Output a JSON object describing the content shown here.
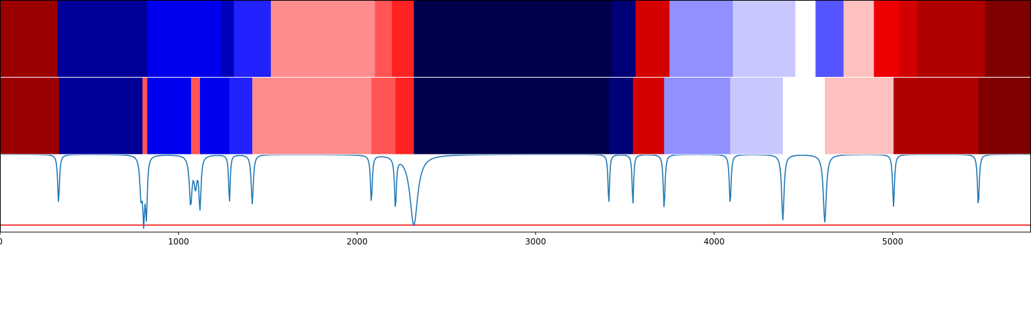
{
  "chart_data": {
    "type": "heatmap",
    "title": "",
    "xlabel": "",
    "ylabel": "",
    "xlim": [
      0,
      5775
    ],
    "x_ticks": [
      "0",
      "1000",
      "2000",
      "3000",
      "4000",
      "5000"
    ],
    "x_tick_values": [
      0,
      1000,
      2000,
      3000,
      4000,
      5000
    ],
    "grid": false,
    "colors": {
      "line": "#1f77b4",
      "threshold_line": "#ee0000",
      "axes_edge": "#000000",
      "band_divider": "#ffffff"
    },
    "bands": [
      {
        "name": "",
        "segments": [
          {
            "start": 0,
            "end": 322,
            "color": "#9a0000"
          },
          {
            "start": 322,
            "end": 825,
            "color": "#000099"
          },
          {
            "start": 825,
            "end": 1237,
            "color": "#0000ee"
          },
          {
            "start": 1237,
            "end": 1310,
            "color": "#0000bb"
          },
          {
            "start": 1310,
            "end": 1517,
            "color": "#2222ff"
          },
          {
            "start": 1517,
            "end": 2100,
            "color": "#ff8c8c"
          },
          {
            "start": 2100,
            "end": 2195,
            "color": "#ff5555"
          },
          {
            "start": 2195,
            "end": 2318,
            "color": "#ff2222"
          },
          {
            "start": 2318,
            "end": 3425,
            "color": "#00004d"
          },
          {
            "start": 3425,
            "end": 3560,
            "color": "#000077"
          },
          {
            "start": 3560,
            "end": 3750,
            "color": "#d40000"
          },
          {
            "start": 3750,
            "end": 4105,
            "color": "#9090ff"
          },
          {
            "start": 4105,
            "end": 4455,
            "color": "#c8c8ff"
          },
          {
            "start": 4455,
            "end": 4568,
            "color": "#ffffff"
          },
          {
            "start": 4568,
            "end": 4725,
            "color": "#5555ff"
          },
          {
            "start": 4725,
            "end": 4895,
            "color": "#ffc0c0"
          },
          {
            "start": 4895,
            "end": 5035,
            "color": "#ee0000"
          },
          {
            "start": 5035,
            "end": 5137,
            "color": "#d20000"
          },
          {
            "start": 5137,
            "end": 5518,
            "color": "#b10000"
          },
          {
            "start": 5518,
            "end": 5775,
            "color": "#800000"
          }
        ]
      },
      {
        "name": "",
        "segments": [
          {
            "start": 0,
            "end": 330,
            "color": "#9a0000"
          },
          {
            "start": 330,
            "end": 798,
            "color": "#000099"
          },
          {
            "start": 798,
            "end": 825,
            "color": "#ff5555"
          },
          {
            "start": 825,
            "end": 1070,
            "color": "#0000ee"
          },
          {
            "start": 1070,
            "end": 1120,
            "color": "#ff5555"
          },
          {
            "start": 1120,
            "end": 1285,
            "color": "#0000ee"
          },
          {
            "start": 1285,
            "end": 1413,
            "color": "#2222ff"
          },
          {
            "start": 1413,
            "end": 2080,
            "color": "#ff8c8c"
          },
          {
            "start": 2080,
            "end": 2215,
            "color": "#ff5555"
          },
          {
            "start": 2215,
            "end": 2318,
            "color": "#ff2222"
          },
          {
            "start": 2318,
            "end": 3410,
            "color": "#00004d"
          },
          {
            "start": 3410,
            "end": 3545,
            "color": "#000077"
          },
          {
            "start": 3545,
            "end": 3720,
            "color": "#d40000"
          },
          {
            "start": 3720,
            "end": 4090,
            "color": "#9090ff"
          },
          {
            "start": 4090,
            "end": 4385,
            "color": "#c8c8ff"
          },
          {
            "start": 4385,
            "end": 4620,
            "color": "#ffffff"
          },
          {
            "start": 4620,
            "end": 5005,
            "color": "#ffc0c0"
          },
          {
            "start": 5005,
            "end": 5480,
            "color": "#b10000"
          },
          {
            "start": 5480,
            "end": 5775,
            "color": "#800000"
          }
        ]
      }
    ],
    "line_series": {
      "name": "",
      "ylim": [
        -1.1,
        0.0
      ],
      "threshold": -1.0,
      "dips": [
        {
          "x": 328,
          "depth": 0.68,
          "width": 6
        },
        {
          "x": 790,
          "depth": 0.55,
          "width": 8
        },
        {
          "x": 805,
          "depth": 0.82,
          "width": 6
        },
        {
          "x": 820,
          "depth": 0.8,
          "width": 6
        },
        {
          "x": 1068,
          "depth": 0.67,
          "width": 9
        },
        {
          "x": 1095,
          "depth": 0.4,
          "width": 10
        },
        {
          "x": 1120,
          "depth": 0.72,
          "width": 7
        },
        {
          "x": 1285,
          "depth": 0.68,
          "width": 5
        },
        {
          "x": 1413,
          "depth": 0.7,
          "width": 7
        },
        {
          "x": 2080,
          "depth": 0.66,
          "width": 6
        },
        {
          "x": 2215,
          "depth": 0.71,
          "width": 6
        },
        {
          "x": 2318,
          "depth": 1.0,
          "width": 26
        },
        {
          "x": 3410,
          "depth": 0.7,
          "width": 5
        },
        {
          "x": 3545,
          "depth": 0.71,
          "width": 5
        },
        {
          "x": 3720,
          "depth": 0.76,
          "width": 6
        },
        {
          "x": 4090,
          "depth": 0.7,
          "width": 6
        },
        {
          "x": 4385,
          "depth": 0.93,
          "width": 8
        },
        {
          "x": 4620,
          "depth": 0.96,
          "width": 10
        },
        {
          "x": 5005,
          "depth": 0.74,
          "width": 6
        },
        {
          "x": 5480,
          "depth": 0.73,
          "width": 6
        }
      ]
    }
  }
}
